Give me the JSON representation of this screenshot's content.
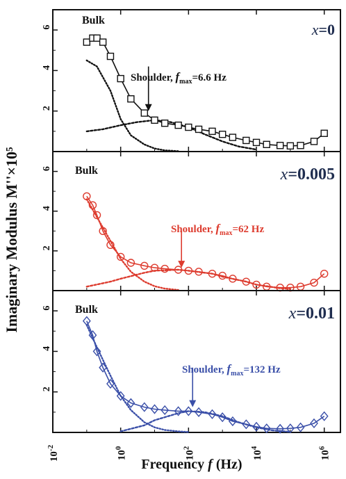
{
  "chart_data": {
    "type": "scatter",
    "ylabel": "Imaginary Modulus M''×10⁵",
    "xlabel": "Frequency f (Hz)",
    "x_scale": "log",
    "xlim": [
      0.01,
      3000000
    ],
    "x_ticks": [
      0.01,
      1,
      100,
      10000,
      1000000
    ],
    "x_tick_labels": [
      {
        "base": "10",
        "exp": "-2"
      },
      {
        "base": "10",
        "exp": "0"
      },
      {
        "base": "10",
        "exp": "2"
      },
      {
        "base": "10",
        "exp": "4"
      },
      {
        "base": "10",
        "exp": "6"
      }
    ],
    "ylim": [
      0,
      7
    ],
    "y_ticks": [
      2,
      4,
      6
    ],
    "panels": [
      {
        "composition": "x=0",
        "peak_label": "Bulk",
        "shoulder_label": {
          "prefix": "Shoulder, ",
          "f": "f",
          "sub": "max",
          "value": "=6.6 Hz"
        },
        "shoulder_freq": 6.6,
        "arrow_from_y": 4.2,
        "arrow_to_y": 2.0,
        "color": "#111111",
        "marker": "square",
        "series": [
          {
            "x": [
              0.1,
              0.15,
              0.2,
              0.3,
              0.5,
              1,
              2,
              5,
              10,
              20,
              50,
              100,
              200,
              500,
              1000,
              2000,
              5000,
              10000,
              20000,
              50000,
              100000,
              200000,
              500000,
              1000000
            ],
            "values": [
              5.4,
              5.6,
              5.6,
              5.4,
              4.7,
              3.6,
              2.6,
              1.9,
              1.55,
              1.4,
              1.3,
              1.2,
              1.1,
              1.0,
              0.85,
              0.7,
              0.55,
              0.45,
              0.35,
              0.3,
              0.28,
              0.3,
              0.5,
              0.9
            ]
          },
          {
            "x": [
              0.1,
              0.2,
              0.5,
              1,
              2,
              5,
              10,
              20,
              50
            ],
            "values": [
              4.5,
              4.2,
              3.0,
              1.6,
              0.8,
              0.35,
              0.15,
              0.06,
              0.02
            ]
          },
          {
            "x": [
              0.1,
              0.3,
              1,
              3,
              10,
              30,
              100,
              300,
              1000,
              3000,
              10000
            ],
            "values": [
              1.0,
              1.1,
              1.3,
              1.45,
              1.55,
              1.45,
              1.2,
              0.85,
              0.5,
              0.25,
              0.1
            ]
          }
        ]
      },
      {
        "composition": "x=0.005",
        "peak_label": "Bulk",
        "shoulder_label": {
          "prefix": "Shoulder, ",
          "f": "f",
          "sub": "max",
          "value": "=62 Hz"
        },
        "shoulder_freq": 62,
        "arrow_from_y": 3.0,
        "arrow_to_y": 1.15,
        "color": "#dd3b2e",
        "marker": "circle",
        "series": [
          {
            "x": [
              0.1,
              0.15,
              0.2,
              0.3,
              0.5,
              1,
              2,
              5,
              10,
              20,
              50,
              100,
              200,
              500,
              1000,
              2000,
              5000,
              10000,
              20000,
              50000,
              100000,
              200000,
              500000,
              1000000
            ],
            "values": [
              4.75,
              4.3,
              3.8,
              3.0,
              2.3,
              1.7,
              1.4,
              1.25,
              1.15,
              1.1,
              1.05,
              1.0,
              0.95,
              0.85,
              0.75,
              0.6,
              0.45,
              0.3,
              0.2,
              0.15,
              0.15,
              0.2,
              0.4,
              0.85
            ]
          },
          {
            "x": [
              0.1,
              0.2,
              0.5,
              1,
              2,
              5,
              10,
              20,
              50
            ],
            "values": [
              4.6,
              3.7,
              2.5,
              1.6,
              0.95,
              0.45,
              0.22,
              0.1,
              0.03
            ]
          },
          {
            "x": [
              0.1,
              0.5,
              1,
              5,
              10,
              50,
              100,
              500,
              1000,
              5000,
              10000,
              50000,
              100000
            ],
            "values": [
              0.2,
              0.45,
              0.6,
              0.9,
              1.0,
              1.05,
              1.0,
              0.85,
              0.7,
              0.45,
              0.3,
              0.12,
              0.08
            ]
          }
        ]
      },
      {
        "composition": "x=0.01",
        "peak_label": "Bulk",
        "shoulder_label": {
          "prefix": "Shoulder, ",
          "f": "f",
          "sub": "max",
          "value": "=132 Hz"
        },
        "shoulder_freq": 132,
        "arrow_from_y": 3.2,
        "arrow_to_y": 1.25,
        "color": "#3a4fa8",
        "marker": "diamond",
        "series": [
          {
            "x": [
              0.1,
              0.15,
              0.2,
              0.3,
              0.5,
              1,
              2,
              5,
              10,
              20,
              50,
              100,
              200,
              500,
              1000,
              2000,
              5000,
              10000,
              20000,
              50000,
              100000,
              200000,
              500000,
              1000000
            ],
            "values": [
              5.5,
              4.8,
              4.0,
              3.2,
              2.4,
              1.8,
              1.45,
              1.25,
              1.15,
              1.1,
              1.05,
              1.05,
              1.0,
              0.9,
              0.75,
              0.55,
              0.4,
              0.28,
              0.2,
              0.18,
              0.2,
              0.25,
              0.45,
              0.8
            ]
          },
          {
            "x": [
              0.1,
              0.2,
              0.5,
              1,
              2,
              5,
              10,
              20,
              50,
              100
            ],
            "values": [
              5.3,
              4.2,
              2.8,
              1.8,
              1.1,
              0.5,
              0.25,
              0.12,
              0.05,
              0.02
            ]
          },
          {
            "x": [
              1,
              5,
              10,
              50,
              100,
              300,
              1000,
              3000,
              10000,
              30000,
              100000
            ],
            "values": [
              0.05,
              0.35,
              0.6,
              0.95,
              1.05,
              1.0,
              0.8,
              0.5,
              0.25,
              0.1,
              0.03
            ]
          }
        ]
      }
    ]
  }
}
